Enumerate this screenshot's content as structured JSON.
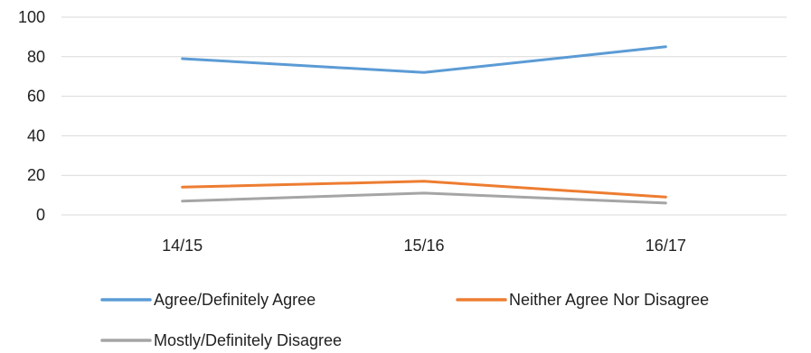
{
  "chart_data": {
    "type": "line",
    "title": "",
    "xlabel": "",
    "ylabel": "",
    "categories": [
      "14/15",
      "15/16",
      "16/17"
    ],
    "ylim": [
      0,
      100
    ],
    "yticks": [
      0,
      20,
      40,
      60,
      80,
      100
    ],
    "grid": true,
    "legend_position": "bottom",
    "series": [
      {
        "name": "Agree/Definitely Agree",
        "values": [
          79,
          72,
          85
        ],
        "color": "#5b9bd5"
      },
      {
        "name": "Neither Agree Nor Disagree",
        "values": [
          14,
          17,
          9
        ],
        "color": "#ed7d31"
      },
      {
        "name": "Mostly/Definitely Disagree",
        "values": [
          7,
          11,
          6
        ],
        "color": "#a5a5a5"
      }
    ]
  }
}
